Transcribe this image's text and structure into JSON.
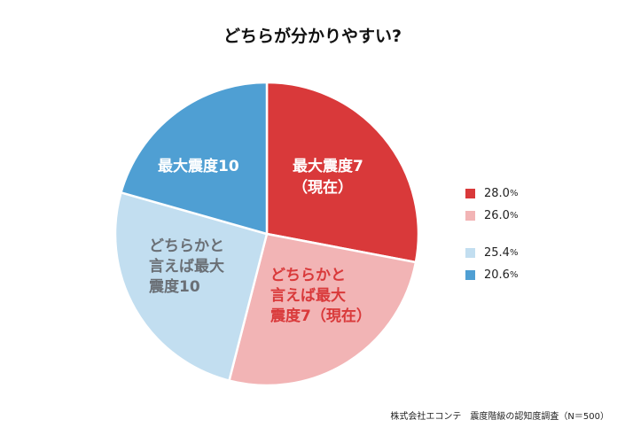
{
  "chart_data": {
    "type": "pie",
    "title": "どちらが分かりやすい?",
    "slices": [
      {
        "name": "最大震度7（現在）",
        "value": 28.0,
        "color": "#d9393a",
        "label_lines": [
          "最大震度7",
          "（現在）"
        ],
        "label_color": "#ffffff"
      },
      {
        "name": "どちらかと言えば最大震度7（現在）",
        "value": 26.0,
        "color": "#f2b4b5",
        "label_lines": [
          "どちらかと",
          "言えば最大",
          "震度7（現在）"
        ],
        "label_color": "#d9393a"
      },
      {
        "name": "どちらかと言えば最大震度10",
        "value": 25.4,
        "color": "#c2def0",
        "label_lines": [
          "どちらかと",
          "言えば最大",
          "震度10"
        ],
        "label_color": "#6a6f75"
      },
      {
        "name": "最大震度10",
        "value": 20.6,
        "color": "#4f9fd3",
        "label_lines": [
          "最大震度10"
        ],
        "label_color": "#ffffff"
      }
    ],
    "legend_position": "right"
  },
  "legend": [
    {
      "value": "28.0",
      "unit": "%",
      "color": "#d9393a"
    },
    {
      "value": "26.0",
      "unit": "%",
      "color": "#f2b4b5"
    },
    {
      "value": "25.4",
      "unit": "%",
      "color": "#c2def0"
    },
    {
      "value": "20.6",
      "unit": "%",
      "color": "#4f9fd3"
    }
  ],
  "source": "株式会社エコンテ　震度階級の認知度調査（N＝500）"
}
